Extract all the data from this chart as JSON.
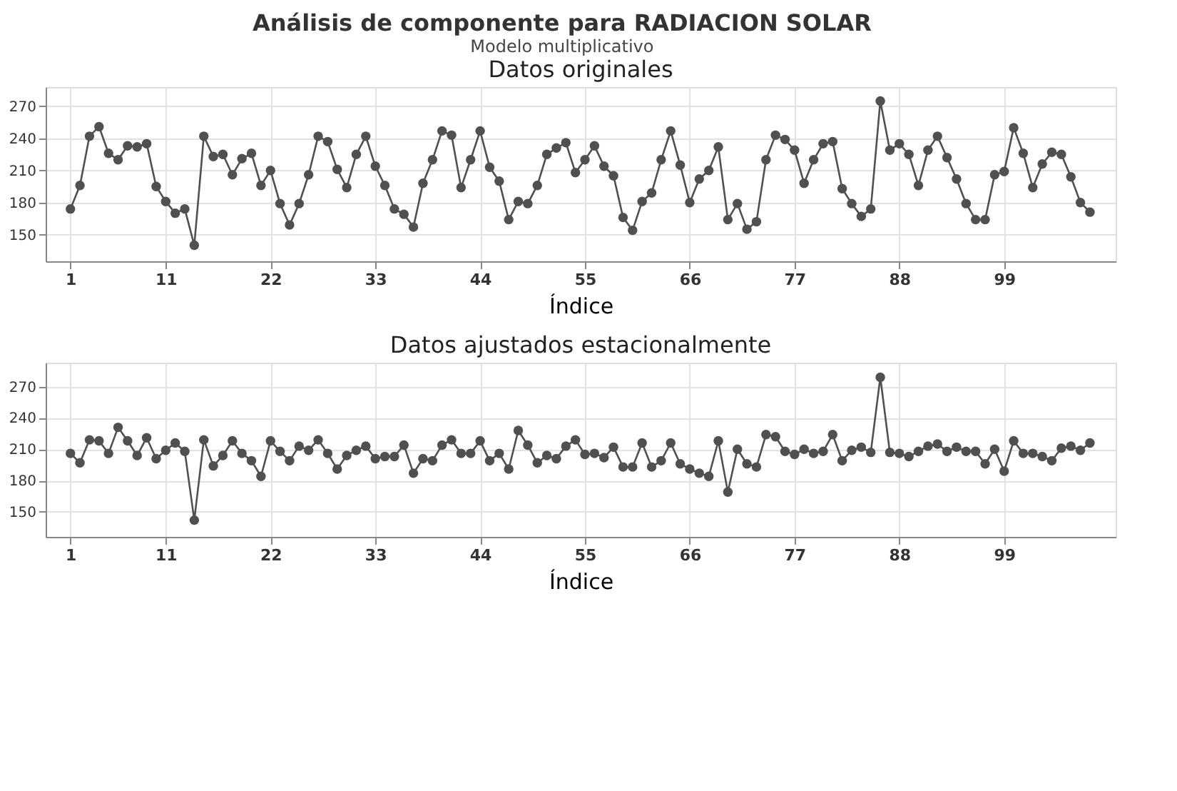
{
  "chart_data": [
    {
      "type": "line",
      "title": "Datos originales",
      "annotations": [
        "Análisis de componente para RADIACION SOLAR",
        "Modelo multiplicativo"
      ],
      "xlabel": "Índice",
      "marker": "circle",
      "line_style": "solid",
      "grid": true,
      "x": [
        1,
        2,
        3,
        4,
        5,
        6,
        7,
        8,
        9,
        10,
        11,
        12,
        13,
        14,
        15,
        16,
        17,
        18,
        19,
        20,
        21,
        22,
        23,
        24,
        25,
        26,
        27,
        28,
        29,
        30,
        31,
        32,
        33,
        34,
        35,
        36,
        37,
        38,
        39,
        40,
        41,
        42,
        43,
        44,
        45,
        46,
        47,
        48,
        49,
        50,
        51,
        52,
        53,
        54,
        55,
        56,
        57,
        58,
        59,
        60,
        61,
        62,
        63,
        64,
        65,
        66,
        67,
        68,
        69,
        70,
        71,
        72,
        73,
        74,
        75,
        76,
        77,
        78,
        79,
        80,
        81,
        82,
        83,
        84,
        85,
        86,
        87,
        88,
        89,
        90,
        91,
        92,
        93,
        94,
        95,
        96,
        97,
        98,
        99,
        100,
        101,
        102,
        103,
        104,
        105,
        106,
        107,
        108
      ],
      "series": [
        {
          "color": "#505050",
          "values": [
            174,
            196,
            242,
            251,
            226,
            220,
            233,
            232,
            235,
            195,
            181,
            170,
            174,
            140,
            242,
            223,
            225,
            206,
            221,
            226,
            196,
            210,
            179,
            159,
            179,
            206,
            242,
            237,
            211,
            194,
            225,
            242,
            214,
            196,
            174,
            169,
            157,
            198,
            220,
            247,
            243,
            194,
            220,
            247,
            213,
            200,
            164,
            181,
            179,
            196,
            225,
            231,
            236,
            208,
            220,
            233,
            214,
            205,
            166,
            154,
            181,
            189,
            220,
            247,
            215,
            180,
            202,
            210,
            232,
            164,
            179,
            155,
            162,
            220,
            243,
            239,
            229,
            198,
            220,
            235,
            237,
            193,
            179,
            167,
            174,
            275,
            229,
            235,
            225,
            196,
            229,
            242,
            222,
            202,
            179,
            164,
            164,
            206,
            209,
            250,
            226,
            194,
            216,
            227,
            225,
            204,
            180,
            171
          ]
        }
      ],
      "xlim": [
        -1.6,
        110.7
      ],
      "xticks": [
        1,
        11,
        22,
        33,
        44,
        55,
        66,
        77,
        88,
        99
      ],
      "ylim": [
        125,
        288
      ],
      "yticks": [
        150,
        180,
        210,
        240,
        270
      ]
    },
    {
      "type": "line",
      "title": "Datos ajustados estacionalmente",
      "xlabel": "Índice",
      "marker": "circle",
      "line_style": "solid",
      "grid": true,
      "x": [
        1,
        2,
        3,
        4,
        5,
        6,
        7,
        8,
        9,
        10,
        11,
        12,
        13,
        14,
        15,
        16,
        17,
        18,
        19,
        20,
        21,
        22,
        23,
        24,
        25,
        26,
        27,
        28,
        29,
        30,
        31,
        32,
        33,
        34,
        35,
        36,
        37,
        38,
        39,
        40,
        41,
        42,
        43,
        44,
        45,
        46,
        47,
        48,
        49,
        50,
        51,
        52,
        53,
        54,
        55,
        56,
        57,
        58,
        59,
        60,
        61,
        62,
        63,
        64,
        65,
        66,
        67,
        68,
        69,
        70,
        71,
        72,
        73,
        74,
        75,
        76,
        77,
        78,
        79,
        80,
        81,
        82,
        83,
        84,
        85,
        86,
        87,
        88,
        89,
        90,
        91,
        92,
        93,
        94,
        95,
        96,
        97,
        98,
        99,
        100,
        101,
        102,
        103,
        104,
        105,
        106,
        107,
        108
      ],
      "series": [
        {
          "color": "#505050",
          "values": [
            206,
            197,
            219,
            218,
            206,
            231,
            218,
            204,
            221,
            201,
            209,
            216,
            208,
            142,
            219,
            194,
            204,
            218,
            206,
            199,
            184,
            218,
            208,
            199,
            213,
            209,
            219,
            206,
            191,
            204,
            209,
            213,
            201,
            203,
            203,
            214,
            187,
            201,
            199,
            214,
            219,
            206,
            206,
            218,
            199,
            206,
            191,
            228,
            214,
            197,
            204,
            201,
            213,
            219,
            205,
            206,
            202,
            212,
            193,
            193,
            216,
            193,
            199,
            216,
            196,
            191,
            187,
            184,
            218,
            169,
            210,
            196,
            193,
            224,
            222,
            208,
            205,
            210,
            206,
            208,
            224,
            199,
            209,
            212,
            207,
            279,
            207,
            206,
            203,
            208,
            213,
            215,
            208,
            212,
            208,
            208,
            196,
            210,
            189,
            218,
            206,
            206,
            203,
            199,
            211,
            213,
            209,
            216
          ]
        }
      ],
      "xlim": [
        -1.6,
        110.7
      ],
      "xticks": [
        1,
        11,
        22,
        33,
        44,
        55,
        66,
        77,
        88,
        99
      ],
      "ylim": [
        126,
        293
      ],
      "yticks": [
        150,
        180,
        210,
        240,
        270
      ]
    }
  ]
}
